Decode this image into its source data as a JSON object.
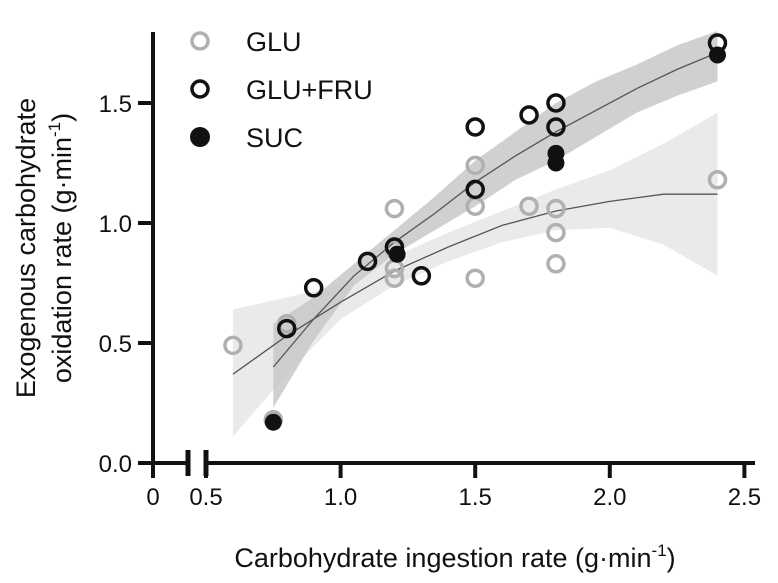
{
  "chart_data": {
    "type": "scatter",
    "xlabel": "Carbohydrate ingestion rate (g·min",
    "xlabel_sup": "-1",
    "xlabel_end": ")",
    "ylabel_line1": "Exogenous carbohydrate",
    "ylabel_line2": "oxidation rate (g·min",
    "ylabel_sup": "-1",
    "ylabel_end": ")",
    "x_ticks": [
      "0",
      "0.5",
      "1.0",
      "1.5",
      "2.0",
      "2.5"
    ],
    "y_ticks": [
      "0.0",
      "0.5",
      "1.0",
      "1.5"
    ],
    "xlim": [
      0.5,
      2.5
    ],
    "ylim": [
      0,
      1.8
    ],
    "x_axis_break": true,
    "legend_placement": "top-left",
    "series": [
      {
        "name": "GLU",
        "marker": "open-circle",
        "color": "#b0b0b0",
        "points": [
          [
            0.6,
            0.49
          ],
          [
            0.75,
            0.18
          ],
          [
            0.8,
            0.58
          ],
          [
            1.2,
            1.06
          ],
          [
            1.2,
            0.89
          ],
          [
            1.2,
            0.81
          ],
          [
            1.2,
            0.77
          ],
          [
            1.5,
            1.24
          ],
          [
            1.5,
            1.07
          ],
          [
            1.5,
            0.77
          ],
          [
            1.7,
            1.07
          ],
          [
            1.8,
            1.06
          ],
          [
            1.8,
            0.96
          ],
          [
            1.8,
            0.83
          ],
          [
            2.4,
            1.18
          ]
        ]
      },
      {
        "name": "GLU+FRU",
        "marker": "open-circle",
        "color": "#111111",
        "points": [
          [
            0.8,
            0.56
          ],
          [
            0.9,
            0.73
          ],
          [
            1.1,
            0.84
          ],
          [
            1.2,
            0.9
          ],
          [
            1.3,
            0.78
          ],
          [
            1.5,
            1.4
          ],
          [
            1.5,
            1.14
          ],
          [
            1.7,
            1.45
          ],
          [
            1.8,
            1.5
          ],
          [
            1.8,
            1.4
          ],
          [
            2.4,
            1.75
          ]
        ]
      },
      {
        "name": "SUC",
        "marker": "filled-circle",
        "color": "#111111",
        "points": [
          [
            0.75,
            0.17
          ],
          [
            1.21,
            0.87
          ],
          [
            1.8,
            1.29
          ],
          [
            1.8,
            1.25
          ],
          [
            2.4,
            1.7
          ]
        ]
      }
    ],
    "fits": [
      {
        "series": "GLU",
        "line_color": "#555555",
        "band_color": "#e6e6e6",
        "x": [
          0.6,
          0.8,
          1.0,
          1.2,
          1.4,
          1.6,
          1.8,
          2.0,
          2.2,
          2.4
        ],
        "y": [
          0.37,
          0.53,
          0.67,
          0.8,
          0.9,
          0.99,
          1.05,
          1.09,
          1.12,
          1.12
        ],
        "lower": [
          0.11,
          0.37,
          0.6,
          0.74,
          0.84,
          0.92,
          0.97,
          0.98,
          0.91,
          0.78
        ],
        "upper": [
          0.64,
          0.69,
          0.74,
          0.86,
          0.96,
          1.05,
          1.14,
          1.22,
          1.33,
          1.46
        ]
      },
      {
        "series": "GLU+FRU",
        "line_color": "#555555",
        "band_color": "#c8c8c8",
        "x": [
          0.75,
          0.9,
          1.05,
          1.2,
          1.35,
          1.5,
          1.65,
          1.8,
          1.95,
          2.1,
          2.25,
          2.4
        ],
        "y": [
          0.4,
          0.6,
          0.78,
          0.92,
          1.04,
          1.17,
          1.28,
          1.38,
          1.47,
          1.56,
          1.64,
          1.71
        ],
        "lower": [
          0.23,
          0.51,
          0.74,
          0.87,
          0.97,
          1.07,
          1.18,
          1.26,
          1.36,
          1.46,
          1.53,
          1.59
        ],
        "upper": [
          0.58,
          0.69,
          0.83,
          0.97,
          1.11,
          1.26,
          1.38,
          1.5,
          1.59,
          1.66,
          1.74,
          1.8
        ]
      }
    ]
  }
}
